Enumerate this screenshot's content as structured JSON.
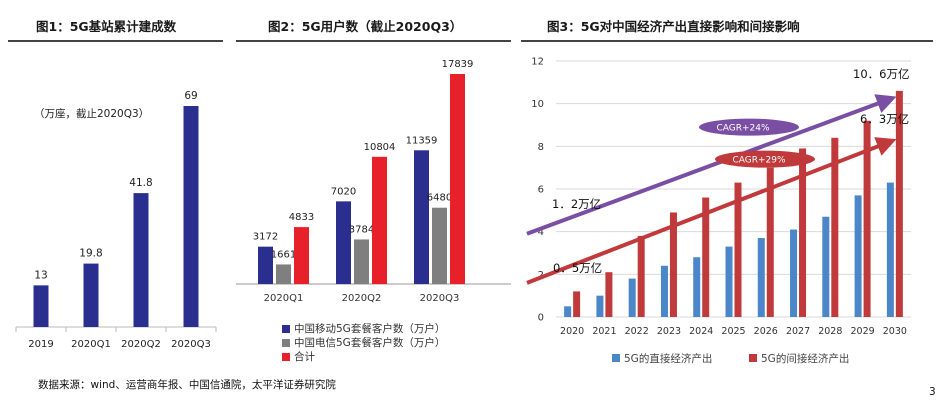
{
  "panels": {
    "fig1_title": "图1：5G基站累计建成数",
    "fig2_title": "图2：5G用户数（截止2020Q3）",
    "fig3_title": "图3：5G对中国经济产出直接影响和间接影响"
  },
  "colors": {
    "navy": "#2a2f8f",
    "gray": "#7f7f7f",
    "red": "#e8202a",
    "blue": "#4a86c8",
    "darkred": "#c0393b",
    "purple": "#7a4fa3",
    "arrow_red": "#c0393b"
  },
  "footer": {
    "source": "数据来源：wind、运营商年报、中国信通院，太平洋证券研究院",
    "page": "3"
  },
  "chart_data": [
    {
      "type": "bar",
      "title": "图1：5G基站累计建成数",
      "annotation": "（万座，截止2020Q3）",
      "categories": [
        "2019",
        "2020Q1",
        "2020Q2",
        "2020Q3"
      ],
      "values": [
        13,
        19.8,
        41.8,
        69
      ],
      "value_labels": [
        "13",
        "19.8",
        "41.8",
        "69"
      ],
      "ylim": [
        0,
        75
      ]
    },
    {
      "type": "bar",
      "title": "图2：5G用户数（截止2020Q3）",
      "categories": [
        "2020Q1",
        "2020Q2",
        "2020Q3"
      ],
      "series": [
        {
          "name": "中国移动5G套餐客户数（万户）",
          "values": [
            3172,
            7020,
            11359
          ],
          "labels": [
            "3172",
            "7020",
            "11359"
          ]
        },
        {
          "name": "中国电信5G套餐客户数（万户）",
          "values": [
            1661,
            3784,
            6480
          ],
          "labels": [
            "1661",
            "3784",
            "6480"
          ]
        },
        {
          "name": "合计",
          "values": [
            4833,
            10804,
            17839
          ],
          "labels": [
            "4833",
            "10804",
            "17839"
          ]
        }
      ],
      "ylim": [
        0,
        18500
      ]
    },
    {
      "type": "bar",
      "title": "图3：5G对中国经济产出直接影响和间接影响",
      "categories": [
        "2020",
        "2021",
        "2022",
        "2023",
        "2024",
        "2025",
        "2026",
        "2027",
        "2028",
        "2029",
        "2030"
      ],
      "series": [
        {
          "name": "5G的直接经济产出",
          "values": [
            0.5,
            1.0,
            1.8,
            2.4,
            2.8,
            3.3,
            3.7,
            4.1,
            4.7,
            5.7,
            6.3
          ]
        },
        {
          "name": "5G的间接经济产出",
          "values": [
            1.2,
            2.1,
            3.8,
            4.9,
            5.6,
            6.3,
            7.0,
            7.9,
            8.4,
            9.2,
            10.6
          ]
        }
      ],
      "ylim": [
        0,
        12
      ],
      "yticks": [
        "0",
        "2",
        "4",
        "6",
        "8",
        "10",
        "12"
      ],
      "grid": true,
      "annotations": {
        "indirect_start": "1．2万亿",
        "indirect_end": "10．6万亿",
        "direct_start": "0．5万亿",
        "direct_end": "6．3万亿",
        "cagr_indirect": "CAGR+24%",
        "cagr_direct": "CAGR+29%"
      }
    }
  ]
}
